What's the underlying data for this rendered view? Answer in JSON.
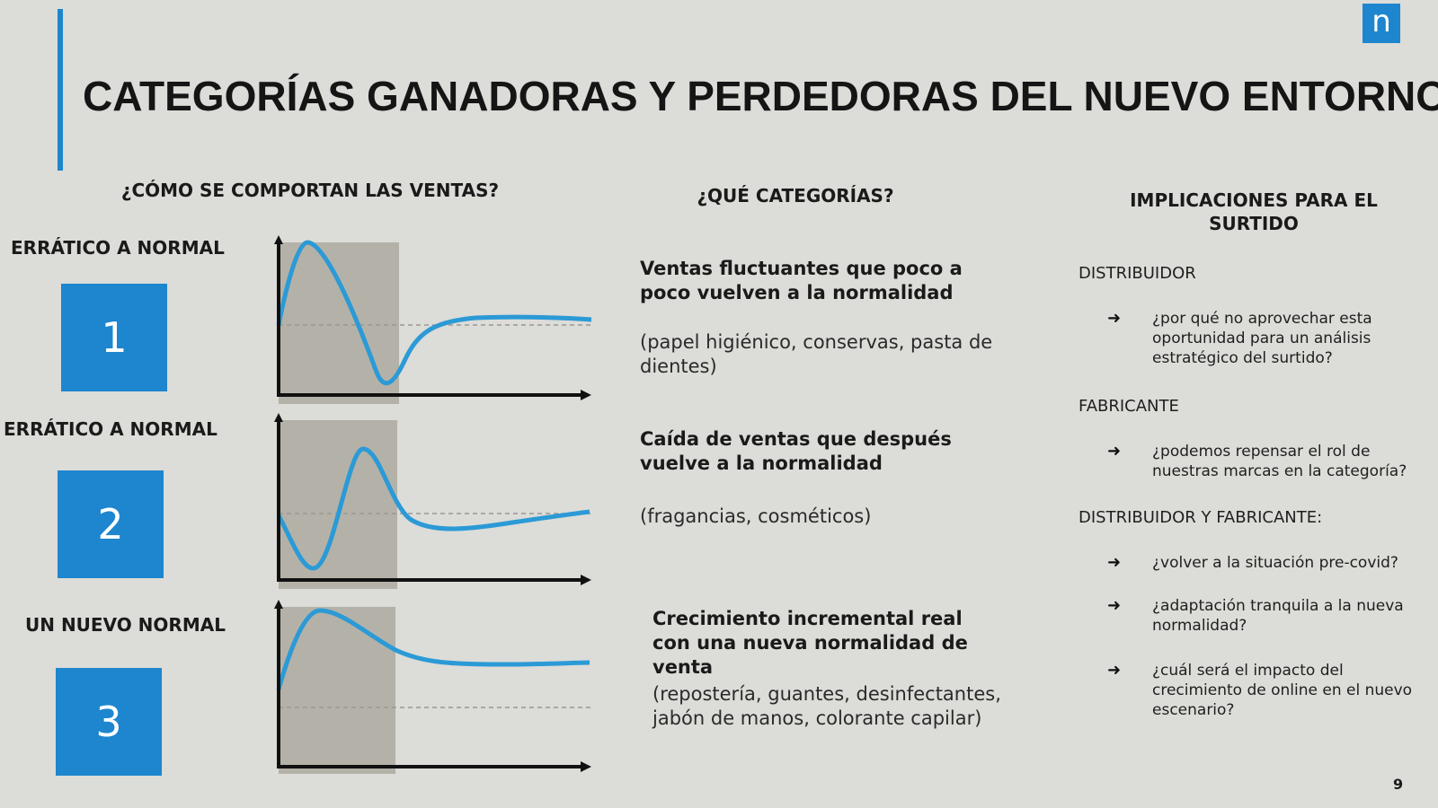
{
  "logo_letter": "n",
  "title": "CATEGORÍAS GANADORAS Y PERDEDORAS DEL NUEVO ENTORNO",
  "columns": {
    "sales": "¿CÓMO SE COMPORTAN LAS VENTAS?",
    "categories": "¿QUÉ CATEGORÍAS?",
    "implications": "IMPLICACIONES PARA EL SURTIDO"
  },
  "scenarios": [
    {
      "label": "ERRÁTICO A NORMAL",
      "number": "1",
      "title": "Ventas fluctuantes que poco a poco vuelven a la normalidad",
      "examples": "(papel higiénico, conservas, pasta de dientes)"
    },
    {
      "label": "ERRÁTICO A NORMAL",
      "number": "2",
      "title": "Caída de ventas que después vuelve a la normalidad",
      "examples": "(fragancias, cosméticos)"
    },
    {
      "label": "UN NUEVO NORMAL",
      "number": "3",
      "title": "Crecimiento incremental real con una nueva normalidad de venta",
      "examples": "(repostería, guantes, desinfectantes, jabón de manos, colorante capilar)"
    }
  ],
  "implications": [
    {
      "role": "DISTRIBUIDOR",
      "items": [
        "¿por qué no aprovechar esta oportunidad para un análisis estratégico del surtido?"
      ]
    },
    {
      "role": "FABRICANTE",
      "items": [
        "¿podemos repensar el rol de nuestras marcas en la categoría?"
      ]
    },
    {
      "role": "DISTRIBUIDOR Y FABRICANTE:",
      "items": [
        "¿volver a la situación pre-covid?",
        "¿adaptación tranquila a la nueva normalidad?",
        "¿cuál será el impacto del crecimiento de online en el nuevo escenario?"
      ]
    }
  ],
  "colors": {
    "accent": "#1d86cf",
    "curve": "#2b9ad6",
    "shade": "#b4b2a8",
    "background": "#dcdcd8"
  },
  "page_number": "9"
}
